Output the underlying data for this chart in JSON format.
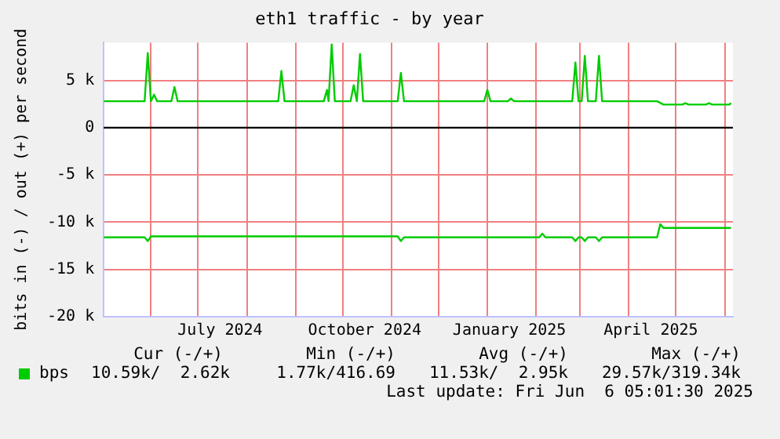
{
  "chart_data": {
    "type": "line",
    "title": "eth1 traffic - by year",
    "ylabel": "bits in (-) / out (+) per second",
    "xlim": [
      "2024-05-02",
      "2025-06-06T05:00"
    ],
    "xticks": [
      {
        "value": "2024-06-01",
        "label": null
      },
      {
        "value": "2024-07-01",
        "label": null
      },
      {
        "value": "2024-07-15",
        "label": "July 2024"
      },
      {
        "value": "2024-08-01",
        "label": null
      },
      {
        "value": "2024-09-01",
        "label": null
      },
      {
        "value": "2024-10-01",
        "label": null
      },
      {
        "value": "2024-10-15",
        "label": "October 2024"
      },
      {
        "value": "2024-11-01",
        "label": null
      },
      {
        "value": "2024-12-01",
        "label": null
      },
      {
        "value": "2025-01-01",
        "label": null
      },
      {
        "value": "2025-01-15",
        "label": "January 2025"
      },
      {
        "value": "2025-02-01",
        "label": null
      },
      {
        "value": "2025-03-01",
        "label": null
      },
      {
        "value": "2025-04-01",
        "label": null
      },
      {
        "value": "2025-04-15",
        "label": "April 2025"
      },
      {
        "value": "2025-05-01",
        "label": null
      },
      {
        "value": "2025-06-01",
        "label": null
      }
    ],
    "ylim": [
      -20000,
      9000
    ],
    "yticks": [
      {
        "value": -20000,
        "label": "-20 k"
      },
      {
        "value": -15000,
        "label": "-15 k"
      },
      {
        "value": -10000,
        "label": "-10 k"
      },
      {
        "value": -5000,
        "label": "-5 k"
      },
      {
        "value": 0,
        "label": "0"
      },
      {
        "value": 5000,
        "label": "5 k"
      }
    ],
    "grid": true,
    "legend": "bottom left",
    "marker": "none",
    "line_style": "solid",
    "ref_lines": [
      {
        "axis": "y",
        "value": 0,
        "color": "#000000"
      }
    ],
    "series": [
      {
        "name": "bps",
        "color": "#00cc00",
        "x": [
          "2024-05-02",
          "2024-05-28",
          "2024-05-30",
          "2024-06-01",
          "2024-06-03",
          "2024-06-05",
          "2024-06-14",
          "2024-06-16",
          "2024-06-18",
          "2024-08-21",
          "2024-08-23",
          "2024-08-25",
          "2024-09-19",
          "2024-09-21",
          "2024-09-22",
          "2024-09-24",
          "2024-09-26",
          "2024-10-06",
          "2024-10-08",
          "2024-10-10",
          "2024-10-12",
          "2024-10-14",
          "2024-11-05",
          "2024-11-07",
          "2024-11-09",
          "2024-12-30",
          "2025-01-01",
          "2025-01-03",
          "2025-01-14",
          "2025-01-16",
          "2025-01-18",
          "2025-02-24",
          "2025-02-26",
          "2025-02-28",
          "2025-03-02",
          "2025-03-04",
          "2025-03-06",
          "2025-03-11",
          "2025-03-13",
          "2025-03-15",
          "2025-04-19",
          "2025-04-23",
          "2025-05-05",
          "2025-05-07",
          "2025-05-09",
          "2025-05-20",
          "2025-05-22",
          "2025-05-24",
          "2025-06-04",
          "2025-06-05"
        ],
        "values": [
          2800,
          2800,
          7900,
          2800,
          3500,
          2800,
          2800,
          4300,
          2800,
          2800,
          6000,
          2800,
          2800,
          4000,
          2800,
          8800,
          2800,
          2800,
          4500,
          2800,
          7800,
          2800,
          2800,
          5800,
          2800,
          2800,
          4000,
          2800,
          2800,
          3100,
          2800,
          2800,
          6900,
          2800,
          2800,
          7600,
          2800,
          2800,
          7600,
          2800,
          2800,
          2450,
          2450,
          2600,
          2450,
          2450,
          2600,
          2450,
          2450,
          2620
        ]
      },
      {
        "color": "#00cc00",
        "x": [
          "2024-05-02",
          "2024-05-28",
          "2024-05-30",
          "2024-06-01",
          "2024-11-05",
          "2024-11-07",
          "2024-11-09",
          "2025-02-03",
          "2025-02-05",
          "2025-02-07",
          "2025-02-24",
          "2025-02-26",
          "2025-02-28",
          "2025-03-02",
          "2025-03-04",
          "2025-03-06",
          "2025-03-11",
          "2025-03-13",
          "2025-03-15",
          "2025-04-19",
          "2025-04-21",
          "2025-04-23",
          "2025-06-05"
        ],
        "values": [
          -11600,
          -11600,
          -12000,
          -11500,
          -11500,
          -12000,
          -11600,
          -11600,
          -11200,
          -11600,
          -11600,
          -12000,
          -11600,
          -11600,
          -12000,
          -11600,
          -11600,
          -12000,
          -11600,
          -11600,
          -10200,
          -10600,
          -10600
        ]
      }
    ],
    "annotations": [
      "Cur (-/+)",
      "Min (-/+)",
      "Avg (-/+)",
      "Max (-/+)",
      "10.59k/  2.62k",
      "1.77k/416.69",
      "11.53k/  2.95k",
      "29.57k/319.34k",
      "Last update: Fri Jun  6 05:01:30 2025"
    ]
  }
}
